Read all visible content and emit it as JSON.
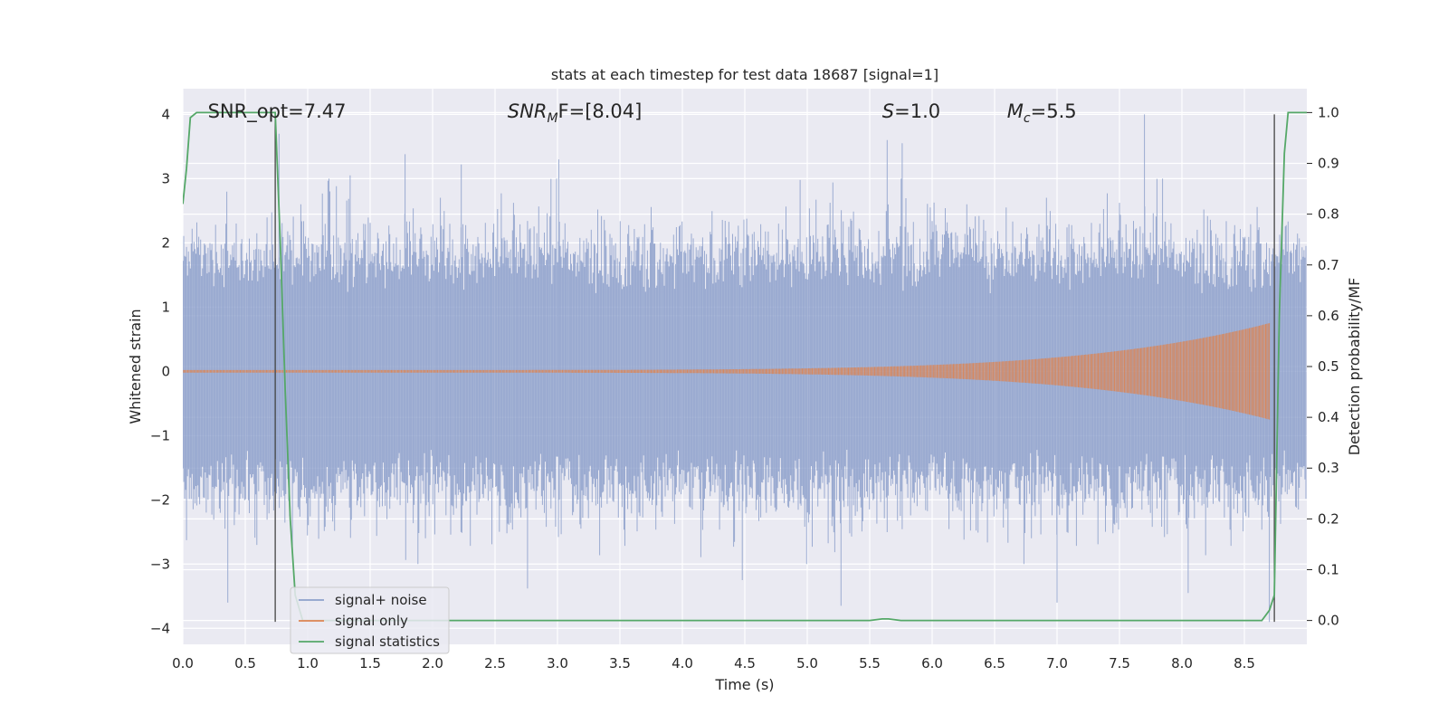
{
  "chart_data": {
    "type": "line",
    "title": "stats at each timestep for test data 18687 [signal=1]",
    "xlabel": "Time (s)",
    "ylabel": "Whitened strain",
    "y2label": "Detection probability/MF",
    "xlim": [
      0.0,
      9.0
    ],
    "ylim": [
      -4.25,
      4.4
    ],
    "y2lim": [
      -0.047,
      1.047
    ],
    "xticks": [
      0.0,
      0.5,
      1.0,
      1.5,
      2.0,
      2.5,
      3.0,
      3.5,
      4.0,
      4.5,
      5.0,
      5.5,
      6.0,
      6.5,
      7.0,
      7.5,
      8.0,
      8.5
    ],
    "yticks": [
      -4,
      -3,
      -2,
      -1,
      0,
      1,
      2,
      3,
      4
    ],
    "y2ticks": [
      0.0,
      0.1,
      0.2,
      0.3,
      0.4,
      0.5,
      0.6,
      0.7,
      0.8,
      0.9,
      1.0
    ],
    "grid": true,
    "legend_position": "lower-left",
    "annotations": [
      {
        "text": "SNR_opt=7.47",
        "x": 0.2,
        "y": 4.05,
        "italic": false
      },
      {
        "text": "SNR",
        "sub": "M",
        "tail": "F=[8.04]",
        "x": 2.6,
        "y": 4.05,
        "italic": true
      },
      {
        "text": "S",
        "sub": "",
        "tail": "=1.0",
        "x": 5.6,
        "y": 4.05,
        "italic": true
      },
      {
        "text": "M",
        "sub": "c",
        "tail": "=5.5",
        "x": 6.6,
        "y": 4.05,
        "italic": true
      }
    ],
    "vlines": [
      0.74,
      8.74
    ],
    "series": [
      {
        "name": "signal+ noise",
        "color": "#8da0cb",
        "axis": "left",
        "kind": "noise",
        "t_range": [
          0.0,
          9.0
        ],
        "envelope_typical": 2.0,
        "peaks": [
          {
            "t": 0.36,
            "v": -3.6
          },
          {
            "t": 0.77,
            "v": 3.7
          },
          {
            "t": 1.34,
            "v": 3.05
          },
          {
            "t": 1.78,
            "v": 3.38
          },
          {
            "t": 2.23,
            "v": 3.22
          },
          {
            "t": 2.76,
            "v": -3.38
          },
          {
            "t": 3.01,
            "v": 3.3
          },
          {
            "t": 4.48,
            "v": -3.25
          },
          {
            "t": 5.27,
            "v": -3.65
          },
          {
            "t": 5.64,
            "v": 3.6
          },
          {
            "t": 5.76,
            "v": 3.55
          },
          {
            "t": 7.0,
            "v": -3.6
          },
          {
            "t": 7.7,
            "v": 4.0
          },
          {
            "t": 8.05,
            "v": -3.45
          },
          {
            "t": 8.7,
            "v": -3.9
          }
        ]
      },
      {
        "name": "signal only",
        "color": "#dd8452",
        "axis": "left",
        "kind": "chirp",
        "t_range": [
          0.0,
          8.7
        ],
        "amplitude_start": 0.02,
        "amplitude_end": 0.75
      },
      {
        "name": "signal statistics",
        "color": "#55a868",
        "axis": "right",
        "kind": "line",
        "x": [
          0.0,
          0.03,
          0.06,
          0.11,
          0.2,
          0.4,
          0.6,
          0.74,
          0.78,
          0.82,
          0.86,
          0.9,
          0.96,
          1.2,
          2.0,
          3.0,
          4.0,
          5.0,
          5.5,
          5.6,
          5.65,
          5.75,
          6.0,
          7.0,
          8.0,
          8.64,
          8.7,
          8.74,
          8.78,
          8.82,
          8.85,
          8.9,
          8.95,
          9.0
        ],
        "y": [
          0.82,
          0.89,
          0.99,
          1.0,
          1.0,
          1.0,
          1.0,
          1.0,
          0.75,
          0.45,
          0.2,
          0.05,
          0.0,
          0.0,
          0.0,
          0.0,
          0.0,
          0.0,
          0.0,
          0.003,
          0.003,
          0.0,
          0.0,
          0.0,
          0.0,
          0.0,
          0.02,
          0.05,
          0.6,
          0.92,
          1.0,
          1.0,
          1.0,
          1.0
        ]
      }
    ]
  }
}
